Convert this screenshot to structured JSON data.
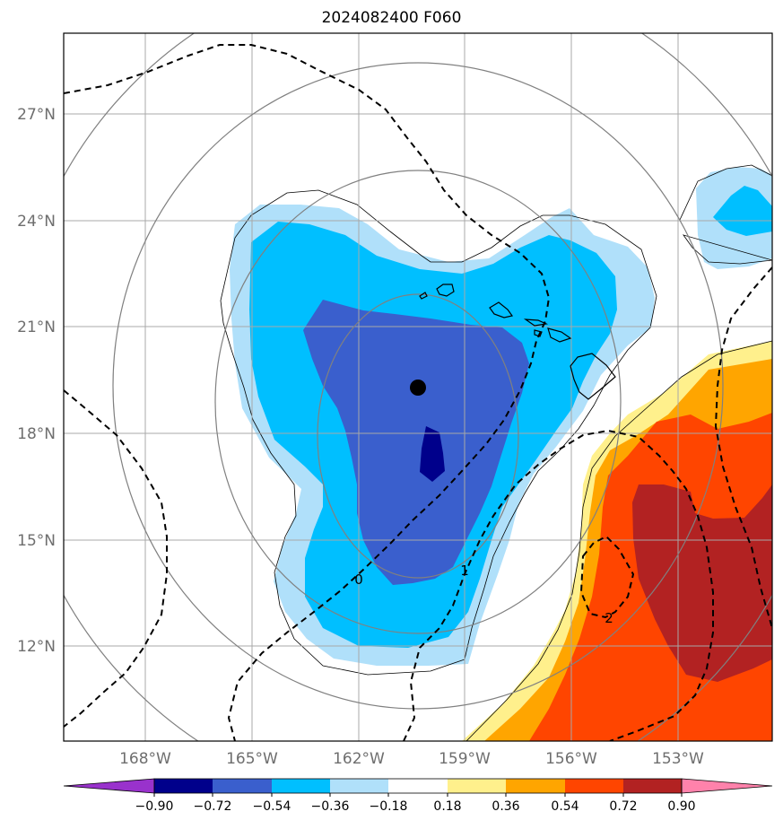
{
  "title": "2024082400 F060",
  "lat_ticks": [
    "27°N",
    "24°N",
    "21°N",
    "18°N",
    "15°N",
    "12°N"
  ],
  "lon_ticks": [
    "168°W",
    "165°W",
    "162°W",
    "159°W",
    "156°W",
    "153°W"
  ],
  "contour_labels": [
    "0",
    "1",
    "2"
  ],
  "colorbar": {
    "ticks": [
      "−0.90",
      "−0.72",
      "−0.54",
      "−0.36",
      "−0.18",
      "0.18",
      "0.36",
      "0.54",
      "0.72",
      "0.90"
    ],
    "colors": [
      "#9932cc",
      "#00008b",
      "#3a5fcd",
      "#00bfff",
      "#b0e0fa",
      "#ffffff",
      "#fff08c",
      "#ffa500",
      "#ff4500",
      "#b22222",
      "#ff82ab"
    ]
  },
  "colors": {
    "dark_navy": "#00008b",
    "royal_blue": "#3a5fcd",
    "deep_sky": "#00bfff",
    "light_blue": "#b0e0fa",
    "light_yellow": "#fff08c",
    "orange": "#ffa500",
    "orange_red": "#ff4500",
    "firebrick": "#b22222"
  }
}
